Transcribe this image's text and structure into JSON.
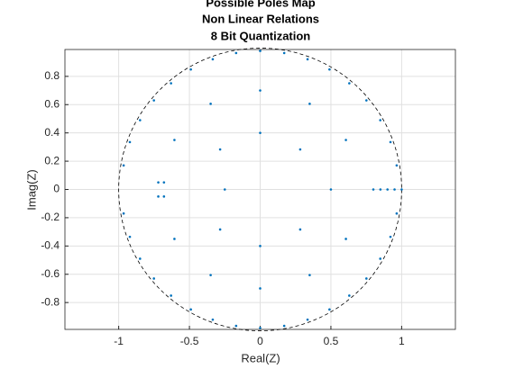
{
  "chart_data": {
    "type": "scatter",
    "title": [
      "Possible Poles Map",
      "Non Linear Relations",
      "8 Bit Quantization"
    ],
    "xlabel": "Real(Z)",
    "ylabel": "Imag(Z)",
    "x": [
      0.965,
      0.921,
      0.849,
      0.751,
      0.63,
      0.49,
      0.335,
      0.17,
      0,
      -0.17,
      -0.335,
      -0.49,
      -0.63,
      -0.751,
      -0.849,
      -0.921,
      -0.965,
      0.965,
      0.921,
      0.849,
      0.751,
      0.63,
      0.49,
      0.335,
      0.17,
      0,
      -0.17,
      -0.335,
      -0.49,
      -0.63,
      -0.751,
      -0.849,
      -0.921,
      -0.965,
      0.606,
      0.35,
      0,
      -0.35,
      -0.606,
      0.606,
      0.35,
      0,
      -0.35,
      -0.606,
      0.283,
      0,
      -0.283,
      0.283,
      0,
      -0.283,
      0.5,
      0.8,
      0.85,
      0.9,
      0.95,
      1,
      -0.25,
      -0.72,
      -0.72,
      -0.68,
      -0.68
    ],
    "y": [
      0.17,
      0.335,
      0.49,
      0.63,
      0.751,
      0.849,
      0.921,
      0.965,
      0.98,
      0.965,
      0.921,
      0.849,
      0.751,
      0.63,
      0.49,
      0.335,
      0.17,
      -0.17,
      -0.335,
      -0.49,
      -0.63,
      -0.751,
      -0.849,
      -0.921,
      -0.965,
      -0.98,
      -0.965,
      -0.921,
      -0.849,
      -0.751,
      -0.63,
      -0.49,
      -0.335,
      -0.17,
      0.35,
      0.606,
      0.7,
      0.606,
      0.35,
      -0.35,
      -0.606,
      -0.7,
      -0.606,
      -0.35,
      0.283,
      0.4,
      0.283,
      -0.283,
      -0.4,
      -0.283,
      0,
      0,
      0,
      0,
      0,
      0,
      0,
      0.05,
      -0.05,
      0.05,
      -0.05
    ],
    "color": "#0072bd",
    "xlim": [
      -1.38,
      1.38
    ],
    "ylim": [
      -0.99,
      0.99
    ],
    "xticks": [
      -1,
      -0.5,
      0,
      0.5,
      1
    ],
    "yticks": [
      -0.8,
      -0.6,
      -0.4,
      -0.2,
      0,
      0.2,
      0.4,
      0.6,
      0.8
    ],
    "grid": true
  }
}
